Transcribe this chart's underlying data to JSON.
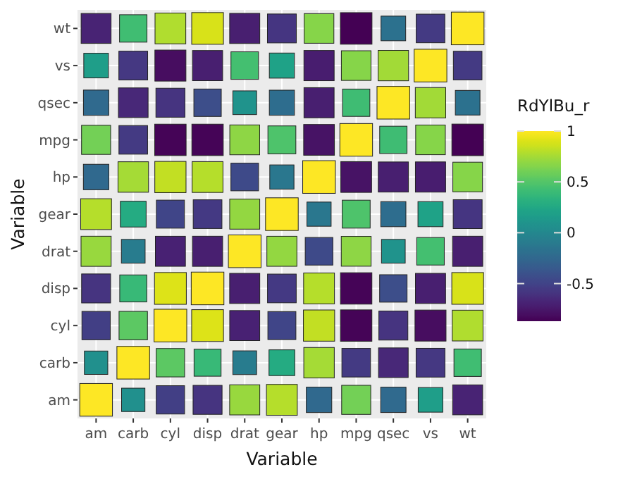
{
  "chart_data": {
    "type": "heatmap",
    "xlabel": "Variable",
    "ylabel": "Variable",
    "clabel": "RdYlBu_r",
    "grid": true,
    "categories": [
      "am",
      "carb",
      "cyl",
      "disp",
      "drat",
      "gear",
      "hp",
      "mpg",
      "qsec",
      "vs",
      "wt"
    ],
    "y_categories": [
      "wt",
      "vs",
      "qsec",
      "mpg",
      "hp",
      "gear",
      "drat",
      "disp",
      "cyl",
      "carb",
      "am"
    ],
    "cells": [
      [
        -0.69,
        0.43,
        0.78,
        0.89,
        -0.71,
        -0.58,
        0.66,
        -0.87,
        -0.17,
        -0.55,
        1
      ],
      [
        0.17,
        -0.57,
        -0.81,
        -0.71,
        0.44,
        0.21,
        -0.72,
        0.66,
        0.74,
        1,
        -0.55
      ],
      [
        -0.23,
        -0.66,
        -0.59,
        -0.43,
        0.09,
        -0.21,
        -0.71,
        0.42,
        1,
        0.74,
        -0.17
      ],
      [
        0.6,
        -0.55,
        -0.85,
        -0.85,
        0.68,
        0.48,
        -0.78,
        1,
        0.42,
        0.66,
        -0.87
      ],
      [
        -0.24,
        0.75,
        0.83,
        0.79,
        -0.45,
        -0.13,
        1,
        -0.78,
        -0.71,
        -0.72,
        0.66
      ],
      [
        0.79,
        0.27,
        -0.49,
        -0.56,
        0.7,
        1,
        -0.13,
        0.48,
        -0.21,
        0.21,
        -0.58
      ],
      [
        0.71,
        -0.09,
        -0.7,
        -0.71,
        1,
        0.7,
        -0.45,
        0.68,
        0.09,
        0.44,
        -0.71
      ],
      [
        -0.59,
        0.39,
        0.9,
        1,
        -0.71,
        -0.56,
        0.79,
        -0.85,
        -0.43,
        -0.71,
        0.89
      ],
      [
        -0.52,
        0.53,
        1,
        0.9,
        -0.7,
        -0.49,
        0.83,
        -0.85,
        -0.59,
        -0.81,
        0.78
      ],
      [
        0.06,
        1,
        0.53,
        0.39,
        -0.09,
        0.27,
        0.75,
        -0.55,
        -0.66,
        -0.57,
        0.43
      ],
      [
        1,
        0.06,
        -0.52,
        -0.59,
        0.71,
        0.79,
        -0.24,
        0.6,
        -0.23,
        0.17,
        -0.69
      ]
    ],
    "clim": [
      -0.87,
      1
    ],
    "cticks": [
      {
        "value": -0.5,
        "label": "-0.5"
      },
      0,
      0.5,
      1
    ]
  }
}
